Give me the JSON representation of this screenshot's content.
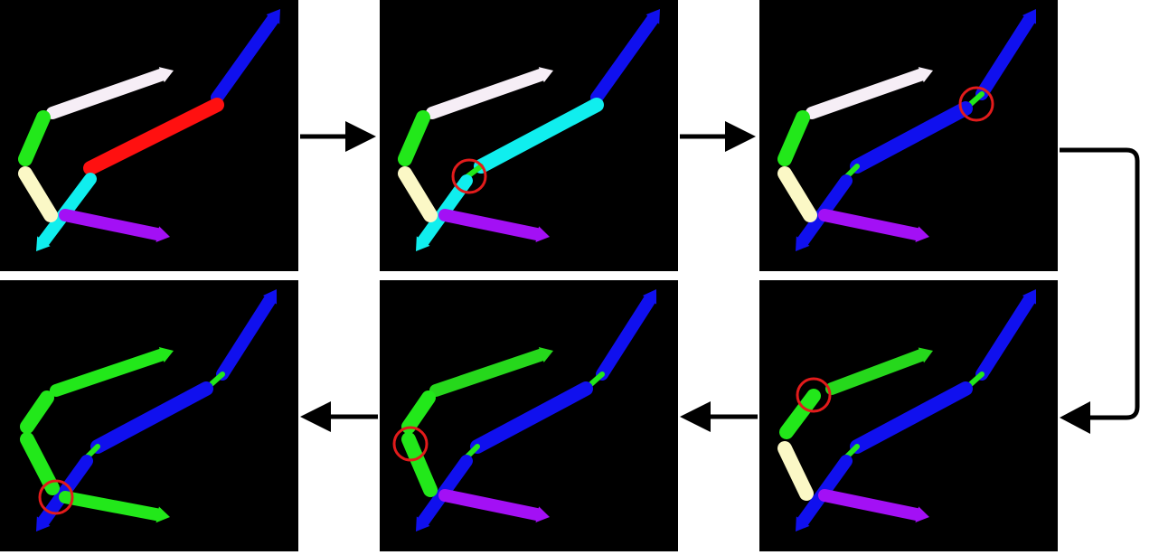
{
  "colors": {
    "background": "#000000",
    "arrow": "#000000",
    "highlight": "#e21b1b",
    "blue": "#1010ee",
    "red": "#ff1010",
    "cyan": "#10eeee",
    "white": "#f6eef6",
    "green": "#22e81a",
    "green_shaded": "#26d81c",
    "yellow": "#fbf8c6",
    "purple": "#a310f5"
  },
  "panels": [
    {
      "id": "step-1",
      "segments": [
        {
          "color": "blue",
          "shape": "arrow",
          "pts": [
            [
              240,
              108
            ],
            [
              310,
              10
            ]
          ]
        },
        {
          "color": "red",
          "shape": "segment",
          "pts": [
            [
              100,
              186
            ],
            [
              240,
              116
            ]
          ]
        },
        {
          "color": "cyan",
          "shape": "arrow",
          "pts": [
            [
              100,
              198
            ],
            [
              40,
              278
            ]
          ]
        },
        {
          "color": "white",
          "shape": "arrow",
          "pts": [
            [
              58,
              125
            ],
            [
              192,
              78
            ]
          ]
        },
        {
          "color": "green",
          "shape": "segment",
          "pts": [
            [
              48,
              130
            ],
            [
              28,
              176
            ]
          ]
        },
        {
          "color": "yellow",
          "shape": "segment",
          "pts": [
            [
              28,
              192
            ],
            [
              56,
              238
            ]
          ]
        },
        {
          "color": "purple",
          "shape": "arrow",
          "pts": [
            [
              72,
              238
            ],
            [
              188,
              262
            ]
          ]
        }
      ],
      "highlight": null
    },
    {
      "id": "step-2",
      "segments": [
        {
          "color": "blue",
          "shape": "arrow",
          "pts": [
            [
              240,
              108
            ],
            [
              310,
              10
            ]
          ]
        },
        {
          "color": "cyan",
          "shape": "segment",
          "pts": [
            [
              112,
              184
            ],
            [
              240,
              116
            ]
          ]
        },
        {
          "color": "green",
          "shape": "joint",
          "pts": [
            [
              96,
              196
            ],
            [
              112,
              184
            ]
          ]
        },
        {
          "color": "cyan",
          "shape": "arrow",
          "pts": [
            [
              96,
              200
            ],
            [
              40,
              278
            ]
          ]
        },
        {
          "color": "white",
          "shape": "arrow",
          "pts": [
            [
              58,
              125
            ],
            [
              192,
              78
            ]
          ]
        },
        {
          "color": "green",
          "shape": "segment",
          "pts": [
            [
              48,
              130
            ],
            [
              28,
              176
            ]
          ]
        },
        {
          "color": "yellow",
          "shape": "segment",
          "pts": [
            [
              28,
              192
            ],
            [
              56,
              238
            ]
          ]
        },
        {
          "color": "purple",
          "shape": "arrow",
          "pts": [
            [
              72,
              238
            ],
            [
              188,
              262
            ]
          ]
        }
      ],
      "highlight": [
        99,
        195
      ]
    },
    {
      "id": "step-3",
      "segments": [
        {
          "color": "blue",
          "shape": "arrow",
          "pts": [
            [
              246,
              104
            ],
            [
              306,
              10
            ]
          ]
        },
        {
          "color": "green",
          "shape": "joint",
          "pts": [
            [
              228,
              120
            ],
            [
              246,
              104
            ]
          ]
        },
        {
          "color": "blue",
          "shape": "segment",
          "pts": [
            [
              108,
              184
            ],
            [
              228,
              120
            ]
          ]
        },
        {
          "color": "green",
          "shape": "joint",
          "pts": [
            [
              96,
              196
            ],
            [
              108,
              184
            ]
          ]
        },
        {
          "color": "blue",
          "shape": "arrow",
          "pts": [
            [
              96,
              200
            ],
            [
              40,
              278
            ]
          ]
        },
        {
          "color": "white",
          "shape": "arrow",
          "pts": [
            [
              58,
              125
            ],
            [
              192,
              78
            ]
          ]
        },
        {
          "color": "green",
          "shape": "segment",
          "pts": [
            [
              48,
              130
            ],
            [
              28,
              176
            ]
          ]
        },
        {
          "color": "yellow",
          "shape": "segment",
          "pts": [
            [
              28,
              192
            ],
            [
              56,
              238
            ]
          ]
        },
        {
          "color": "purple",
          "shape": "arrow",
          "pts": [
            [
              72,
              238
            ],
            [
              188,
              262
            ]
          ]
        }
      ],
      "highlight": [
        240,
        115
      ]
    },
    {
      "id": "step-4",
      "segments": [
        {
          "color": "blue",
          "shape": "arrow",
          "pts": [
            [
              246,
              104
            ],
            [
              306,
              10
            ]
          ]
        },
        {
          "color": "green",
          "shape": "joint",
          "pts": [
            [
              228,
              120
            ],
            [
              246,
              104
            ]
          ]
        },
        {
          "color": "blue",
          "shape": "segment",
          "pts": [
            [
              108,
              184
            ],
            [
              228,
              120
            ]
          ]
        },
        {
          "color": "green",
          "shape": "joint",
          "pts": [
            [
              96,
              196
            ],
            [
              108,
              184
            ]
          ]
        },
        {
          "color": "blue",
          "shape": "arrow",
          "pts": [
            [
              96,
              200
            ],
            [
              40,
              278
            ]
          ]
        },
        {
          "color": "green_shaded",
          "shape": "arrow",
          "pts": [
            [
              80,
              120
            ],
            [
              192,
              78
            ]
          ]
        },
        {
          "color": "green",
          "shape": "segment",
          "pts": [
            [
              60,
              128
            ],
            [
              30,
              168
            ]
          ]
        },
        {
          "color": "yellow",
          "shape": "segment",
          "pts": [
            [
              28,
              186
            ],
            [
              52,
              236
            ]
          ]
        },
        {
          "color": "purple",
          "shape": "arrow",
          "pts": [
            [
              72,
              238
            ],
            [
              188,
              262
            ]
          ]
        }
      ],
      "highlight": [
        60,
        127
      ]
    },
    {
      "id": "step-5",
      "segments": [
        {
          "color": "blue",
          "shape": "arrow",
          "pts": [
            [
              246,
              104
            ],
            [
              306,
              10
            ]
          ]
        },
        {
          "color": "green",
          "shape": "joint",
          "pts": [
            [
              228,
              120
            ],
            [
              246,
              104
            ]
          ]
        },
        {
          "color": "blue",
          "shape": "segment",
          "pts": [
            [
              108,
              184
            ],
            [
              228,
              120
            ]
          ]
        },
        {
          "color": "green",
          "shape": "joint",
          "pts": [
            [
              96,
              196
            ],
            [
              108,
              184
            ]
          ]
        },
        {
          "color": "blue",
          "shape": "arrow",
          "pts": [
            [
              96,
              200
            ],
            [
              40,
              278
            ]
          ]
        },
        {
          "color": "green_shaded",
          "shape": "arrow",
          "pts": [
            [
              62,
              122
            ],
            [
              192,
              78
            ]
          ]
        },
        {
          "color": "green",
          "shape": "segment",
          "pts": [
            [
              54,
              130
            ],
            [
              32,
              162
            ]
          ]
        },
        {
          "color": "green",
          "shape": "segment",
          "pts": [
            [
              32,
              176
            ],
            [
              56,
              232
            ]
          ]
        },
        {
          "color": "purple",
          "shape": "arrow",
          "pts": [
            [
              72,
              238
            ],
            [
              188,
              262
            ]
          ]
        }
      ],
      "highlight": [
        34,
        181
      ]
    },
    {
      "id": "step-6",
      "segments": [
        {
          "color": "blue",
          "shape": "arrow",
          "pts": [
            [
              246,
              104
            ],
            [
              306,
              10
            ]
          ]
        },
        {
          "color": "green",
          "shape": "joint",
          "pts": [
            [
              228,
              120
            ],
            [
              246,
              104
            ]
          ]
        },
        {
          "color": "blue",
          "shape": "segment",
          "pts": [
            [
              108,
              184
            ],
            [
              228,
              120
            ]
          ]
        },
        {
          "color": "green",
          "shape": "joint",
          "pts": [
            [
              96,
              196
            ],
            [
              108,
              184
            ]
          ]
        },
        {
          "color": "blue",
          "shape": "arrow",
          "pts": [
            [
              96,
              200
            ],
            [
              40,
              278
            ]
          ]
        },
        {
          "color": "green",
          "shape": "arrow",
          "pts": [
            [
              62,
              122
            ],
            [
              192,
              78
            ]
          ]
        },
        {
          "color": "green",
          "shape": "segment",
          "pts": [
            [
              52,
              130
            ],
            [
              30,
              162
            ]
          ]
        },
        {
          "color": "green",
          "shape": "segment",
          "pts": [
            [
              30,
              176
            ],
            [
              58,
              230
            ]
          ]
        },
        {
          "color": "green",
          "shape": "arrow",
          "pts": [
            [
              72,
              240
            ],
            [
              188,
              262
            ]
          ]
        }
      ],
      "highlight": [
        62,
        240
      ]
    }
  ]
}
